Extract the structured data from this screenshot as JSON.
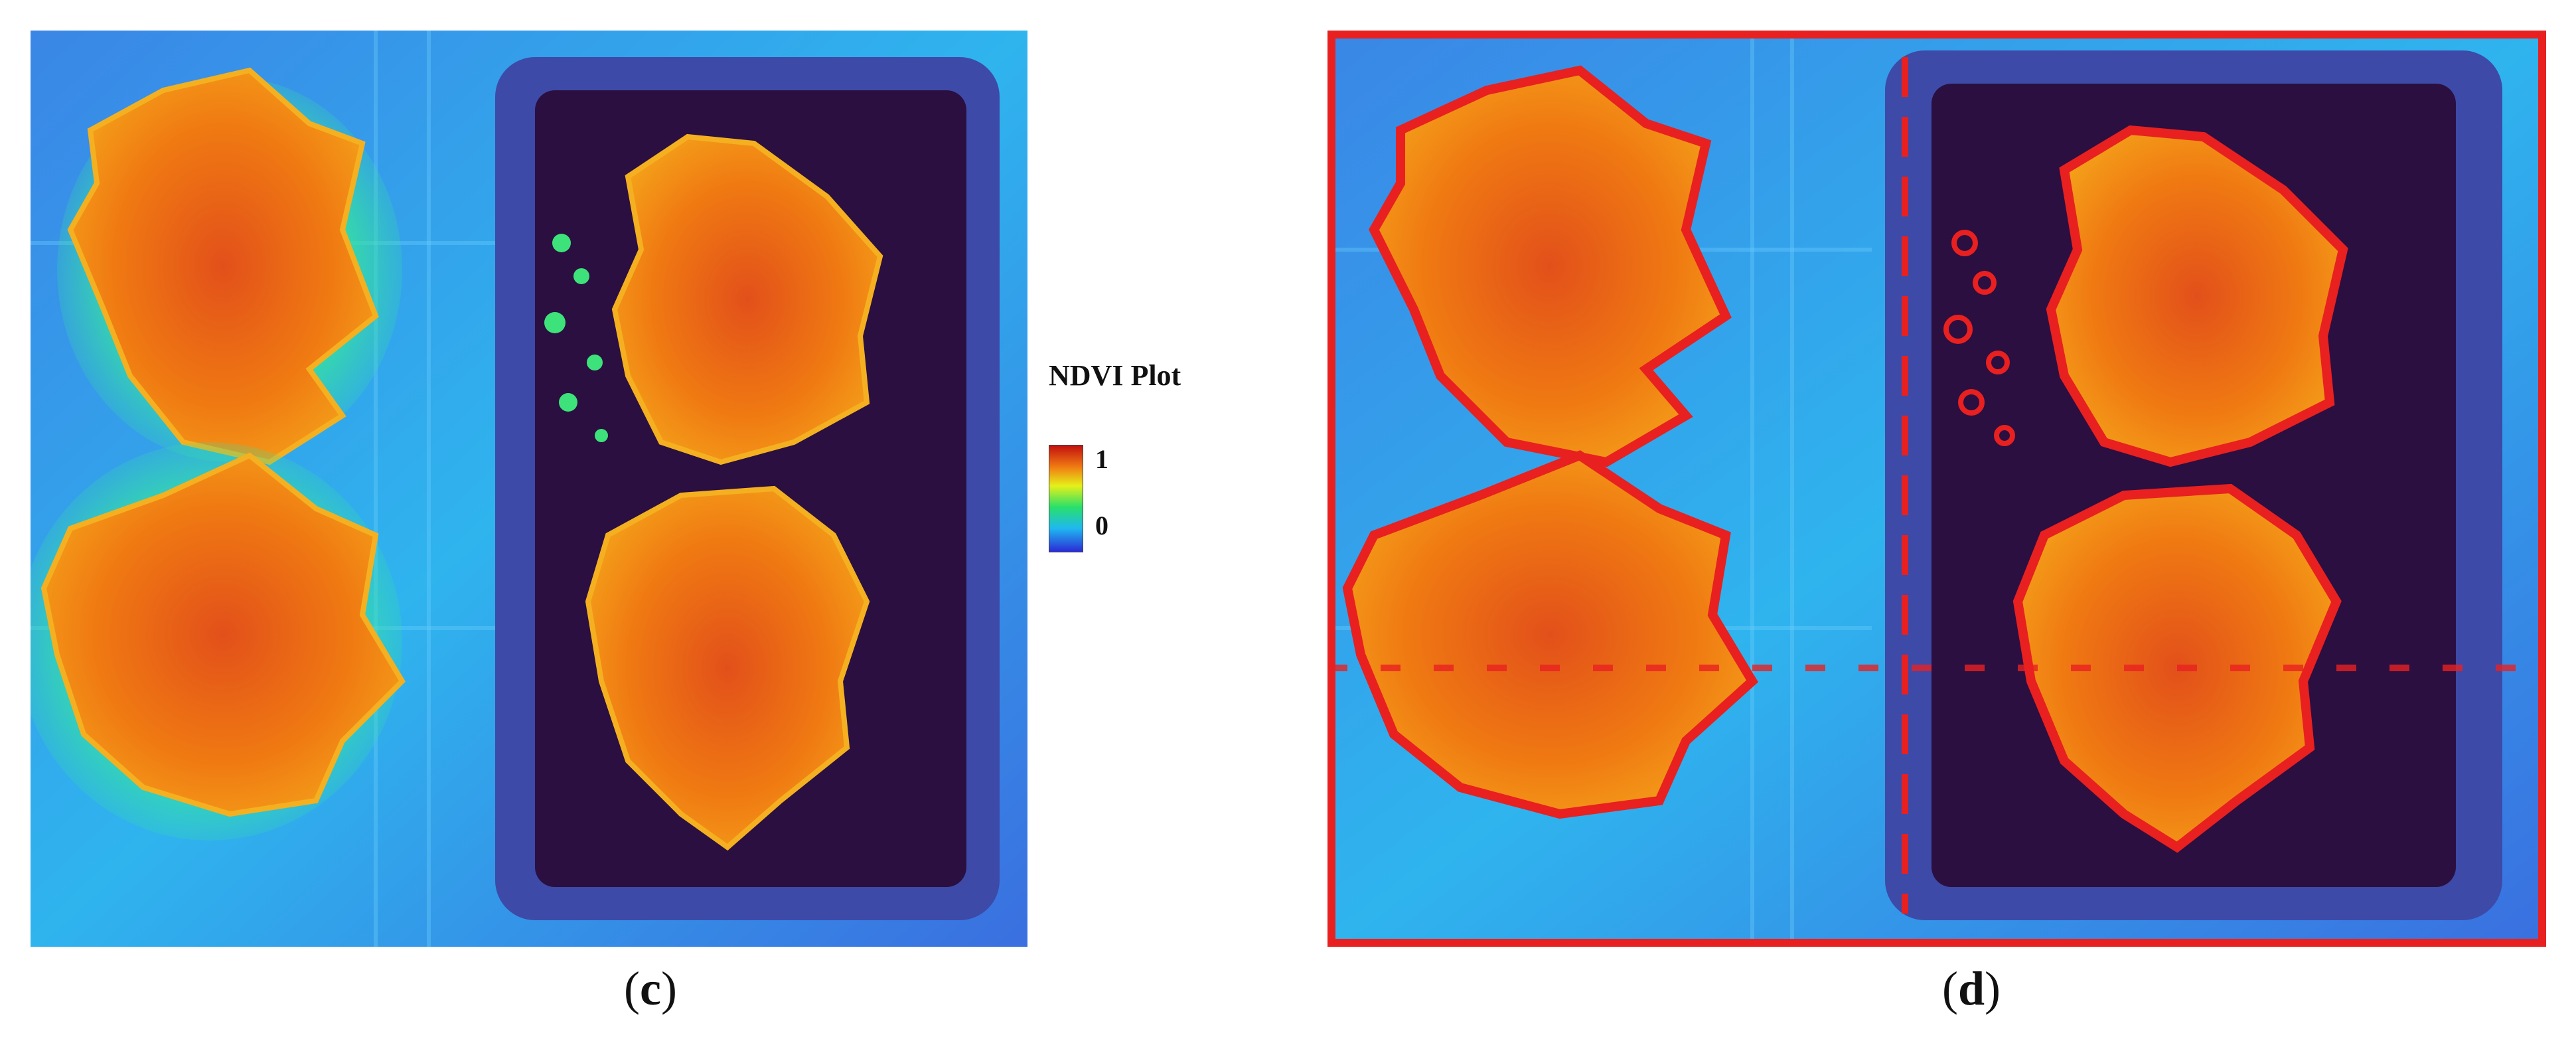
{
  "figure": {
    "panels": [
      {
        "id": "c",
        "caption": "c",
        "description_icon": "ndvi-heatmap-image"
      },
      {
        "id": "d",
        "caption": "d",
        "description_icon": "ndvi-heatmap-segmented-image"
      }
    ],
    "legend": {
      "title": "NDVI Plot",
      "max_label": "1",
      "min_label": "0",
      "colors": [
        "#2b2bd6",
        "#1fb8f0",
        "#28e06a",
        "#e6f01a",
        "#f07a12",
        "#c21010"
      ]
    },
    "colors": {
      "background_blue": "#2f74e0",
      "background_cyan": "#2fd0e8",
      "tray_dark": "#2a0f40",
      "plant_orange": "#f08a12",
      "plant_red": "#e0501a",
      "outline_red": "#e82020"
    }
  }
}
